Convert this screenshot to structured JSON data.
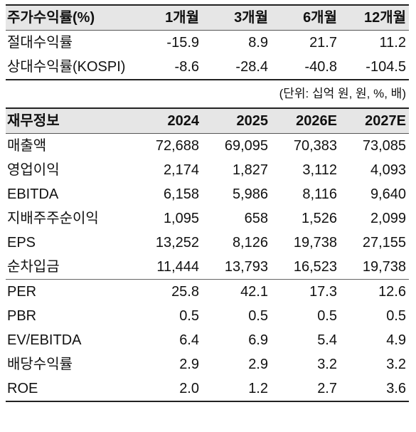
{
  "returns": {
    "header": [
      "주가수익률(%)",
      "1개월",
      "3개월",
      "6개월",
      "12개월"
    ],
    "rows": [
      {
        "label": "절대수익률",
        "values": [
          "-15.9",
          "8.9",
          "21.7",
          "11.2"
        ]
      },
      {
        "label": "상대수익률(KOSPI)",
        "values": [
          "-8.6",
          "-28.4",
          "-40.8",
          "-104.5"
        ]
      }
    ]
  },
  "unit_note": "(단위: 십억 원, 원, %, 배)",
  "financials": {
    "header": [
      "재무정보",
      "2024",
      "2025",
      "2026E",
      "2027E"
    ],
    "rows": [
      {
        "label": "매출액",
        "values": [
          "72,688",
          "69,095",
          "70,383",
          "73,085"
        ]
      },
      {
        "label": "영업이익",
        "values": [
          "2,174",
          "1,827",
          "3,112",
          "4,093"
        ]
      },
      {
        "label": "EBITDA",
        "values": [
          "6,158",
          "5,986",
          "8,116",
          "9,640"
        ]
      },
      {
        "label": "지배주주순이익",
        "values": [
          "1,095",
          "658",
          "1,526",
          "2,099"
        ]
      },
      {
        "label": "EPS",
        "values": [
          "13,252",
          "8,126",
          "19,738",
          "27,155"
        ]
      },
      {
        "label": "순차입금",
        "values": [
          "11,444",
          "13,793",
          "16,523",
          "19,738"
        ]
      },
      {
        "label": "PER",
        "values": [
          "25.8",
          "42.1",
          "17.3",
          "12.6"
        ]
      },
      {
        "label": "PBR",
        "values": [
          "0.5",
          "0.5",
          "0.5",
          "0.5"
        ]
      },
      {
        "label": "EV/EBITDA",
        "values": [
          "6.4",
          "6.9",
          "5.4",
          "4.9"
        ]
      },
      {
        "label": "배당수익률",
        "values": [
          "2.9",
          "2.9",
          "3.2",
          "3.2"
        ]
      },
      {
        "label": "ROE",
        "values": [
          "2.0",
          "1.2",
          "2.7",
          "3.6"
        ]
      }
    ]
  }
}
